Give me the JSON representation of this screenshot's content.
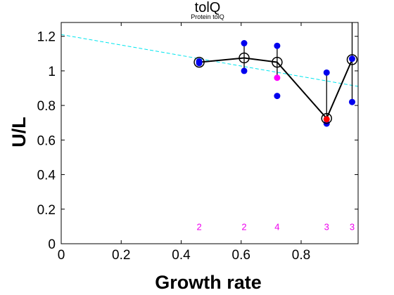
{
  "chart_data": {
    "type": "scatter",
    "title": "tolQ",
    "subtitle": "Protein tolQ",
    "xlabel": "Growth rate",
    "ylabel": "U/L",
    "xlim": [
      0,
      0.99
    ],
    "ylim": [
      0,
      1.28
    ],
    "xticks": [
      "0",
      "0.2",
      "0.4",
      "0.6",
      "0.8"
    ],
    "yticks": [
      "0",
      "0.2",
      "0.4",
      "0.6",
      "0.8",
      "1",
      "1.2"
    ],
    "grid": false,
    "fit_line": {
      "color": "#00e5ee",
      "style": "dashed",
      "points": [
        [
          0,
          1.21
        ],
        [
          0.99,
          0.91
        ]
      ]
    },
    "mean_series": {
      "x": [
        0.46,
        0.61,
        0.72,
        0.885,
        0.97
      ],
      "y": [
        1.05,
        1.075,
        1.05,
        0.725,
        1.065
      ],
      "error_top": [
        1.06,
        1.16,
        1.145,
        0.99,
        1.28
      ],
      "error_bottom": [
        1.045,
        1.0,
        0.96,
        0.695,
        0.82
      ],
      "color": "#000000"
    },
    "replicates": {
      "color": "#0000ee",
      "points": [
        [
          0.46,
          1.055
        ],
        [
          0.46,
          1.045
        ],
        [
          0.61,
          1.16
        ],
        [
          0.61,
          1.0
        ],
        [
          0.72,
          1.145
        ],
        [
          0.72,
          0.855
        ],
        [
          0.885,
          0.99
        ],
        [
          0.885,
          0.695
        ],
        [
          0.97,
          1.07
        ],
        [
          0.97,
          0.82
        ]
      ]
    },
    "highlighted": {
      "points": [
        {
          "x": 0.72,
          "y": 0.96,
          "color": "#ff00ff"
        },
        {
          "x": 0.885,
          "y": 0.72,
          "color": "#ff0000"
        }
      ]
    },
    "counts": {
      "color": "#ee00ee",
      "y": 0.1,
      "items": [
        {
          "x": 0.46,
          "label": "2"
        },
        {
          "x": 0.61,
          "label": "2"
        },
        {
          "x": 0.72,
          "label": "4"
        },
        {
          "x": 0.885,
          "label": "3"
        },
        {
          "x": 0.97,
          "label": "3"
        }
      ]
    }
  }
}
